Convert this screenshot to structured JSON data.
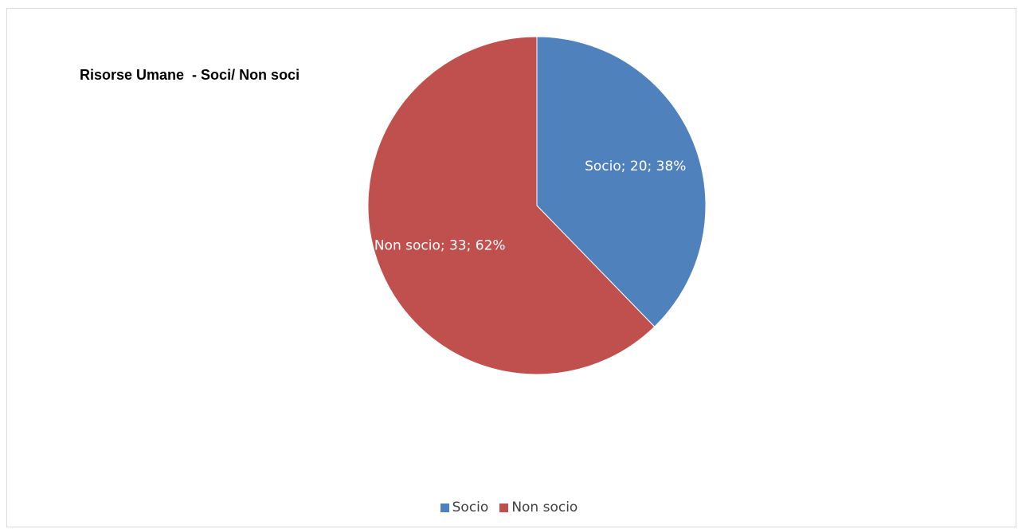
{
  "chart_data": {
    "type": "pie",
    "title": "Risorse Umane  - Soci/ Non soci",
    "slices": [
      {
        "name": "Socio",
        "value": 20,
        "percent": 38,
        "label": "Socio; 20; 38%",
        "color": "#4f81bd"
      },
      {
        "name": "Non socio",
        "value": 33,
        "percent": 62,
        "label": "Non socio; 33; 62%",
        "color": "#c0504d"
      }
    ],
    "legend": {
      "position": "bottom",
      "items": [
        "Socio",
        "Non socio"
      ]
    }
  }
}
